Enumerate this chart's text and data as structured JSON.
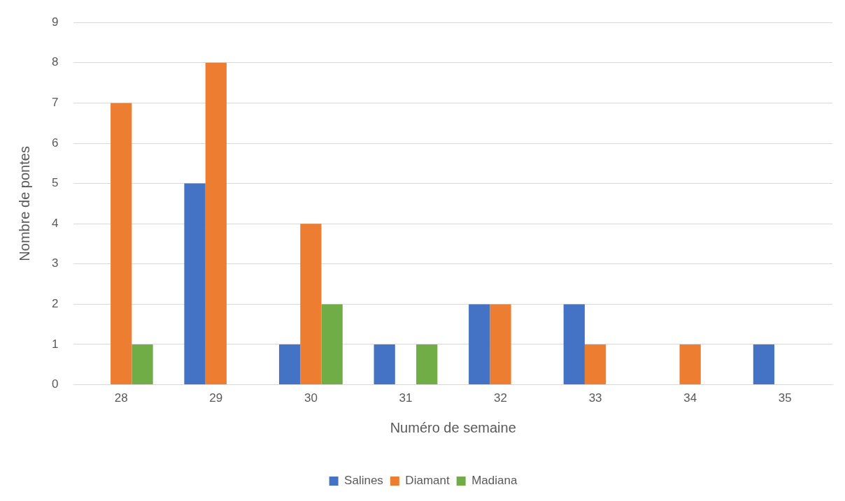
{
  "chart_data": {
    "type": "bar",
    "xlabel": "Numéro de semaine",
    "ylabel": "Nombre de pontes",
    "categories": [
      "28",
      "29",
      "30",
      "31",
      "32",
      "33",
      "34",
      "35"
    ],
    "series": [
      {
        "name": "Salines",
        "color": "#4472c4",
        "values": [
          0,
          5,
          1,
          1,
          2,
          2,
          0,
          1
        ]
      },
      {
        "name": "Diamant",
        "color": "#ed7d31",
        "values": [
          7,
          8,
          4,
          0,
          2,
          1,
          1,
          0
        ]
      },
      {
        "name": "Madiana",
        "color": "#70ad47",
        "values": [
          1,
          0,
          2,
          1,
          0,
          0,
          0,
          0
        ]
      }
    ],
    "ylim": [
      0,
      9
    ],
    "yticks": [
      0,
      1,
      2,
      3,
      4,
      5,
      6,
      7,
      8,
      9
    ],
    "grid": "y",
    "legend": "bottom"
  }
}
